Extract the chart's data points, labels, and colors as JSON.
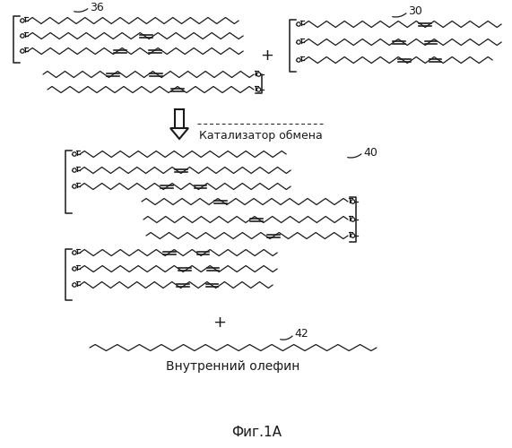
{
  "title": "Фиг.1А",
  "label_36": "36",
  "label_30": "30",
  "label_40": "40",
  "label_42": "42",
  "catalyst_text": "Катализатор обмена",
  "olefin_text": "Внутренний олефин",
  "bg_color": "#ffffff",
  "line_color": "#1a1a1a",
  "figw": 5.71,
  "figh": 5.0,
  "dpi": 100
}
